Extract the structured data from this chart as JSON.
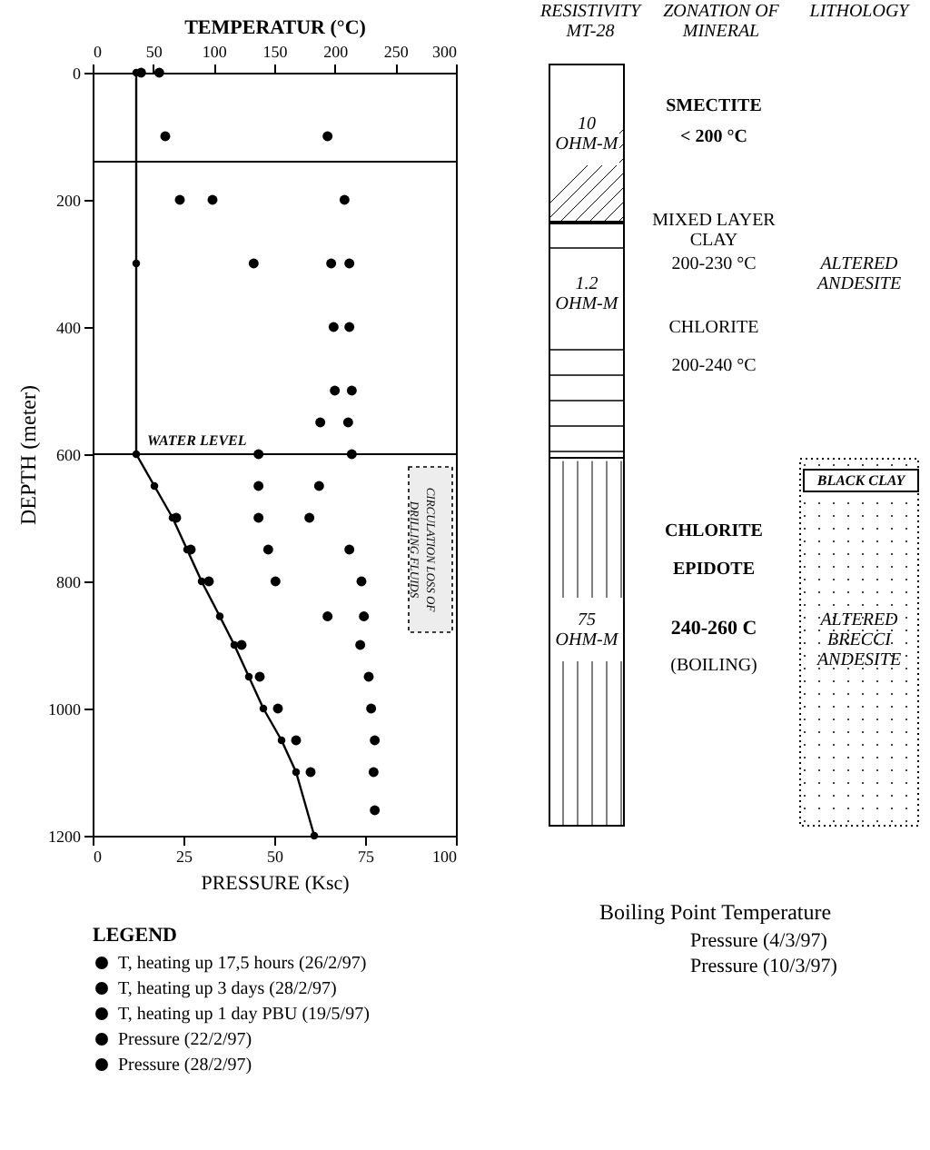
{
  "chart_data": [
    {
      "type": "scatter",
      "xlabel": "PRESSURE  (Ksc)",
      "x2label": "TEMPERATUR  (°C)",
      "ylabel": "DEPTH (meter)",
      "xlim": [
        0,
        100
      ],
      "xticks": [
        0,
        25,
        50,
        75,
        100
      ],
      "x2lim": [
        0,
        300
      ],
      "x2ticks": [
        0,
        50,
        100,
        150,
        200,
        250,
        300
      ],
      "ylim": [
        1200,
        0
      ],
      "yticks": [
        0,
        200,
        400,
        600,
        800,
        1000,
        1200
      ],
      "legend": "bottom",
      "legend_title": "LEGEND",
      "marker": "circle",
      "series": [
        {
          "name": "T, heating up 17,5 hours (26/2/97)",
          "color": "#000000",
          "axis": "x2",
          "x": [
            208,
            212,
            212,
            214,
            211,
            214
          ],
          "values": [
            200,
            300,
            400,
            500,
            550,
            600
          ]
        },
        {
          "name": "T, heating up 3 days (28/2/97)",
          "color": "#000000",
          "axis": "x2",
          "x": [
            40,
            60,
            72,
            99,
            133,
            137,
            137,
            137,
            145,
            151,
            194
          ],
          "values": [
            0,
            100,
            200,
            200,
            300,
            600,
            650,
            700,
            750,
            800,
            855
          ]
        },
        {
          "name": "T, heating up 1 day PBU (19/5/97)",
          "color": "#000000",
          "axis": "x2",
          "x": [
            55,
            194,
            197,
            199,
            200,
            188,
            187,
            179,
            212,
            222,
            224,
            221,
            228,
            230,
            233,
            232,
            233
          ],
          "values": [
            0,
            100,
            300,
            400,
            500,
            550,
            650,
            700,
            750,
            800,
            855,
            900,
            950,
            1000,
            1050,
            1100,
            1160
          ]
        },
        {
          "name": "Pressure (22/2/97)",
          "color": "#000000",
          "x": [
            23,
            27,
            32,
            35,
            41,
            46,
            51,
            56,
            60
          ],
          "values": [
            700,
            750,
            800,
            null,
            900,
            950,
            1000,
            1050,
            1100
          ]
        },
        {
          "name": "Pressure (28/2/97)",
          "color": "#000000",
          "type": "line",
          "x": [
            12,
            12,
            12,
            17,
            22,
            26,
            30,
            35,
            39,
            43,
            47,
            52,
            56,
            61
          ],
          "values": [
            0,
            300,
            600,
            650,
            700,
            750,
            800,
            855,
            900,
            950,
            1000,
            1050,
            1100,
            1200
          ]
        }
      ],
      "ref_lines": [
        {
          "axis": "y",
          "value": 140
        },
        {
          "axis": "y",
          "value": 600,
          "label": "WATER LEVEL"
        }
      ],
      "bands": [
        {
          "axis": "y",
          "from": 620,
          "to": 880,
          "label": "CIRCULATION LOSS OF DRILLING FLUIDS"
        }
      ],
      "annotations": [
        "Boiling Point Temperature",
        "Pressure (4/3/97)",
        "Pressure (10/3/97)"
      ]
    },
    {
      "type": "other",
      "annotations": [
        "RESISTIVITY MT-28",
        "ZONATION OF MINERAL",
        "LITHOLOGY",
        "10 OHM-M",
        "1.2 OHM-M",
        "75 OHM-M",
        "SMECTITE",
        "< 200 °C",
        "MIXED LAYER CLAY",
        "200-230 °C",
        "CHLORITE",
        "200-240 °C",
        "CHLORITE",
        "EPIDOTE",
        "240-260 C",
        "(BOILING)",
        "ALTERED ANDESITE",
        "BLACK CLAY",
        "ALTERED BRECCI ANDESITE"
      ]
    }
  ]
}
